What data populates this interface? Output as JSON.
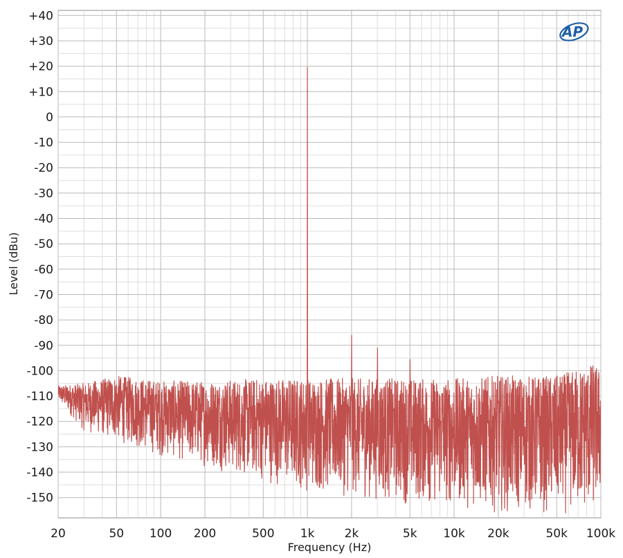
{
  "chart_data": {
    "type": "line",
    "xlabel": "Frequency (Hz)",
    "ylabel": "Level (dBu)",
    "x_scale": "log",
    "xlim": [
      20,
      100000
    ],
    "ylim": [
      -158,
      42
    ],
    "grid": true,
    "x_major_ticks": [
      {
        "value": 20,
        "label": "20"
      },
      {
        "value": 50,
        "label": "50"
      },
      {
        "value": 100,
        "label": "100"
      },
      {
        "value": 200,
        "label": "200"
      },
      {
        "value": 500,
        "label": "500"
      },
      {
        "value": 1000,
        "label": "1k"
      },
      {
        "value": 2000,
        "label": "2k"
      },
      {
        "value": 5000,
        "label": "5k"
      },
      {
        "value": 10000,
        "label": "10k"
      },
      {
        "value": 20000,
        "label": "20k"
      },
      {
        "value": 50000,
        "label": "50k"
      },
      {
        "value": 100000,
        "label": "100k"
      }
    ],
    "y_ticks": [
      {
        "value": 40,
        "label": "+40"
      },
      {
        "value": 30,
        "label": "+30"
      },
      {
        "value": 20,
        "label": "+20"
      },
      {
        "value": 10,
        "label": "+10"
      },
      {
        "value": 0,
        "label": "0"
      },
      {
        "value": -10,
        "label": "-10"
      },
      {
        "value": -20,
        "label": "-20"
      },
      {
        "value": -30,
        "label": "-30"
      },
      {
        "value": -40,
        "label": "-40"
      },
      {
        "value": -50,
        "label": "-50"
      },
      {
        "value": -60,
        "label": "-60"
      },
      {
        "value": -70,
        "label": "-70"
      },
      {
        "value": -80,
        "label": "-80"
      },
      {
        "value": -90,
        "label": "-90"
      },
      {
        "value": -100,
        "label": "-100"
      },
      {
        "value": -110,
        "label": "-110"
      },
      {
        "value": -120,
        "label": "-120"
      },
      {
        "value": -130,
        "label": "-130"
      },
      {
        "value": -140,
        "label": "-140"
      },
      {
        "value": -150,
        "label": "-150"
      }
    ],
    "series": [
      {
        "color": "#c0504d",
        "peaks": [
          {
            "x": 1000,
            "y": 19.5
          },
          {
            "x": 2000,
            "y": -86
          },
          {
            "x": 3000,
            "y": -91
          },
          {
            "x": 5000,
            "y": -95.5
          }
        ],
        "noise_floor": [
          {
            "x": 20,
            "upper": -106,
            "lower": -112
          },
          {
            "x": 30,
            "upper": -105,
            "lower": -124
          },
          {
            "x": 50,
            "upper": -102,
            "lower": -128
          },
          {
            "x": 100,
            "upper": -104,
            "lower": -134
          },
          {
            "x": 200,
            "upper": -104,
            "lower": -138
          },
          {
            "x": 500,
            "upper": -103,
            "lower": -144
          },
          {
            "x": 1000,
            "upper": -103,
            "lower": -148
          },
          {
            "x": 2000,
            "upper": -103,
            "lower": -150
          },
          {
            "x": 5000,
            "upper": -103,
            "lower": -153
          },
          {
            "x": 10000,
            "upper": -103,
            "lower": -154
          },
          {
            "x": 20000,
            "upper": -102,
            "lower": -156
          },
          {
            "x": 50000,
            "upper": -102,
            "lower": -157
          },
          {
            "x": 90000,
            "upper": -97,
            "lower": -157
          },
          {
            "x": 100000,
            "upper": -100,
            "lower": -152
          }
        ]
      }
    ]
  },
  "logo": {
    "text": "AP",
    "color": "#1f5fa8"
  }
}
